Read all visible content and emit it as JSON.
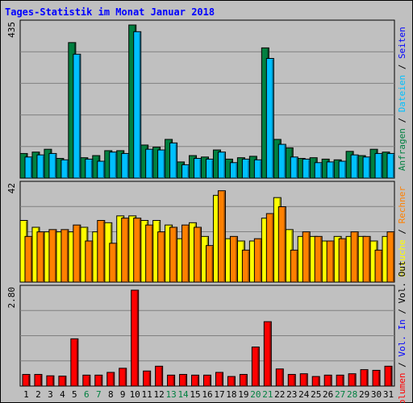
{
  "title": "Tages-Statistik im Monat Januar 2018",
  "chart_data": [
    {
      "type": "bar",
      "name": "requests",
      "ymax_label": "435",
      "ylim": [
        0,
        435
      ],
      "series": [
        {
          "name": "Anfragen",
          "color": "#008040",
          "values": [
            70,
            74,
            82,
            56,
            385,
            58,
            64,
            78,
            78,
            435,
            94,
            88,
            110,
            46,
            64,
            60,
            80,
            54,
            58,
            62,
            370,
            110,
            86,
            56,
            58,
            54,
            52,
            76,
            64,
            82,
            74
          ]
        },
        {
          "name": "Dateien",
          "color": "#00c0ff",
          "values": [
            60,
            66,
            70,
            52,
            352,
            54,
            48,
            74,
            70,
            416,
            82,
            80,
            100,
            38,
            56,
            54,
            74,
            44,
            54,
            52,
            340,
            96,
            60,
            54,
            44,
            46,
            48,
            66,
            60,
            70,
            70
          ]
        },
        {
          "name": "Seiten",
          "color": "#0000ff",
          "values": []
        }
      ],
      "right_labels": [
        {
          "text": "Anfragen",
          "color": "#008040"
        },
        {
          "text": "Dateien",
          "color": "#00c0ff"
        },
        {
          "text": "Seiten",
          "color": "#0000ff"
        }
      ]
    },
    {
      "type": "bar",
      "name": "visits",
      "ymax_label": "42",
      "ylim": [
        0,
        42
      ],
      "series": [
        {
          "name": "Besuche",
          "color": "#ffff00",
          "values": [
            27,
            24,
            22,
            22,
            22,
            24,
            22,
            26,
            29,
            29,
            27,
            27,
            25,
            19,
            26,
            20,
            38,
            19,
            18,
            18,
            28,
            37,
            23,
            20,
            20,
            18,
            20,
            20,
            20,
            18,
            20
          ]
        },
        {
          "name": "Rechner",
          "color": "#ff8000",
          "values": [
            20,
            22,
            23,
            23,
            25,
            18,
            27,
            17,
            28,
            28,
            25,
            22,
            24,
            25,
            24,
            16,
            40,
            20,
            14,
            19,
            30,
            33,
            14,
            22,
            20,
            18,
            19,
            22,
            20,
            14,
            22
          ]
        }
      ],
      "right_labels": [
        {
          "text": "Besuche",
          "color": "#ffff00"
        },
        {
          "text": "Rechner",
          "color": "#ff8000"
        }
      ]
    },
    {
      "type": "bar",
      "name": "volume",
      "ymax_label": "2.80",
      "ylim": [
        0,
        2.8
      ],
      "series": [
        {
          "name": "Volumen",
          "color": "#ff0000",
          "values": [
            0.34,
            0.34,
            0.3,
            0.29,
            1.38,
            0.32,
            0.32,
            0.4,
            0.52,
            2.8,
            0.44,
            0.58,
            0.32,
            0.34,
            0.32,
            0.32,
            0.4,
            0.28,
            0.34,
            1.14,
            1.88,
            0.5,
            0.34,
            0.36,
            0.28,
            0.32,
            0.32,
            0.36,
            0.48,
            0.46,
            0.58
          ]
        }
      ],
      "right_labels": [
        {
          "text": "Volumen",
          "color": "#ff0000"
        },
        {
          "text": "Vol. In",
          "color": "#0000ff"
        },
        {
          "text": "Vol. Out",
          "color": "#000000"
        }
      ]
    }
  ],
  "x_labels": [
    "1",
    "2",
    "3",
    "4",
    "5",
    "6",
    "7",
    "8",
    "9",
    "10",
    "11",
    "12",
    "13",
    "14",
    "15",
    "16",
    "17",
    "18",
    "19",
    "20",
    "21",
    "22",
    "23",
    "24",
    "25",
    "26",
    "27",
    "28",
    "29",
    "30",
    "31"
  ],
  "weekend_days": [
    6,
    7,
    13,
    14,
    20,
    21,
    27,
    28
  ],
  "weekend_color": "#008040",
  "weekday_color": "#000000"
}
